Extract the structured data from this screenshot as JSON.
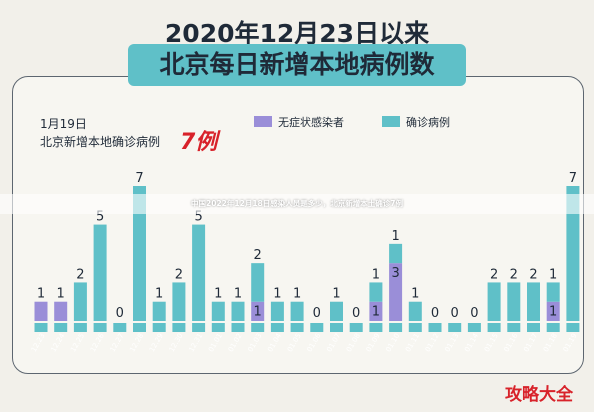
{
  "header": {
    "title_line1": "2020年12月23日以来",
    "title_line2": "北京每日新增本地病例数"
  },
  "annotation": {
    "date": "1月19日",
    "text": "北京新增本地确诊病例",
    "value": "7例"
  },
  "banner": "中国2022年12月18日感染人员是多少，北京新增本土确诊7例",
  "brand": "攻略大全",
  "colors": {
    "asymptomatic": "#9a8ed8",
    "confirmed": "#5fc0c8",
    "annotation_value": "#d8222a"
  },
  "chart_data": {
    "type": "bar",
    "stacked": true,
    "categories": [
      "12.23",
      "12.24",
      "12.25",
      "12.26",
      "12.27",
      "12.28",
      "12.29",
      "12.30",
      "12.31",
      "01.01",
      "01.02",
      "01.03",
      "01.04",
      "01.05",
      "01.06",
      "01.07",
      "01.08",
      "01.09",
      "01.10",
      "01.11",
      "01.12",
      "01.13",
      "01.14",
      "01.15",
      "01.16",
      "01.17",
      "01.18",
      "01.19"
    ],
    "series": [
      {
        "name": "无症状感染者",
        "values": [
          1,
          1,
          0,
          0,
          0,
          0,
          0,
          0,
          0,
          0,
          0,
          1,
          0,
          0,
          0,
          0,
          0,
          1,
          3,
          0,
          0,
          0,
          0,
          0,
          0,
          0,
          1,
          0
        ]
      },
      {
        "name": "确诊病例",
        "values": [
          0,
          0,
          2,
          5,
          0,
          7,
          1,
          2,
          5,
          1,
          1,
          2,
          1,
          1,
          0,
          1,
          0,
          1,
          1,
          1,
          0,
          0,
          0,
          2,
          2,
          2,
          1,
          7
        ]
      }
    ],
    "ylim": [
      0,
      7
    ],
    "legend_position": "top"
  }
}
